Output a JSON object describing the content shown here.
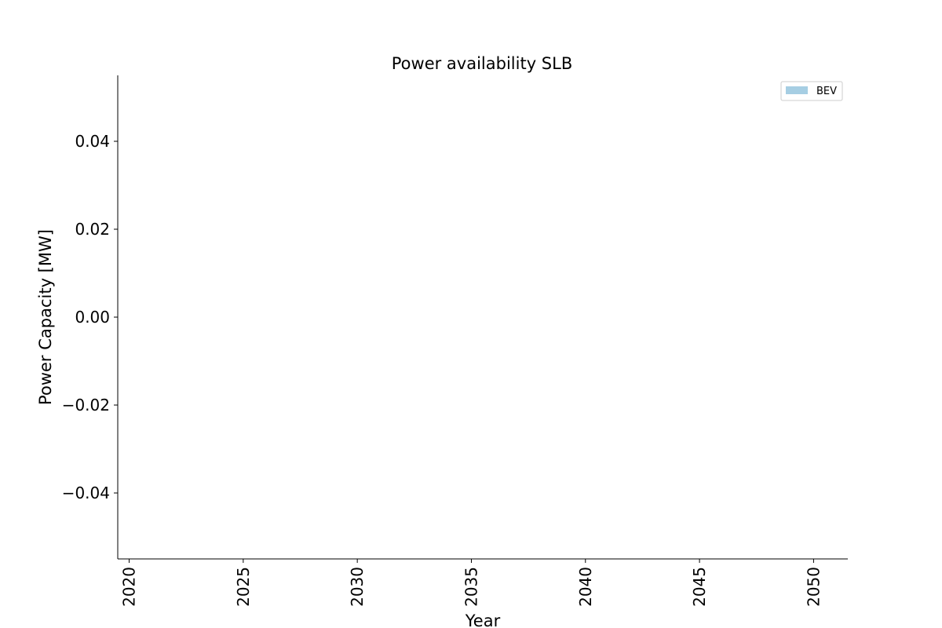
{
  "chart_data": {
    "type": "area",
    "title": "Power availability SLB",
    "xlabel": "Year",
    "ylabel": "Power Capacity [MW]",
    "xlim": [
      2019.5,
      2051.5
    ],
    "ylim": [
      -0.055,
      0.055
    ],
    "xticks": [
      2020,
      2025,
      2030,
      2035,
      2040,
      2045,
      2050
    ],
    "yticks": [
      -0.04,
      -0.02,
      0.0,
      0.02,
      0.04
    ],
    "ytick_labels": [
      "−0.04",
      "−0.02",
      "0.00",
      "0.02",
      "0.04"
    ],
    "grid": false,
    "legend_position": "top-right",
    "series": [
      {
        "name": "BEV",
        "color": "#a6cee3",
        "x": [],
        "y": []
      }
    ]
  }
}
